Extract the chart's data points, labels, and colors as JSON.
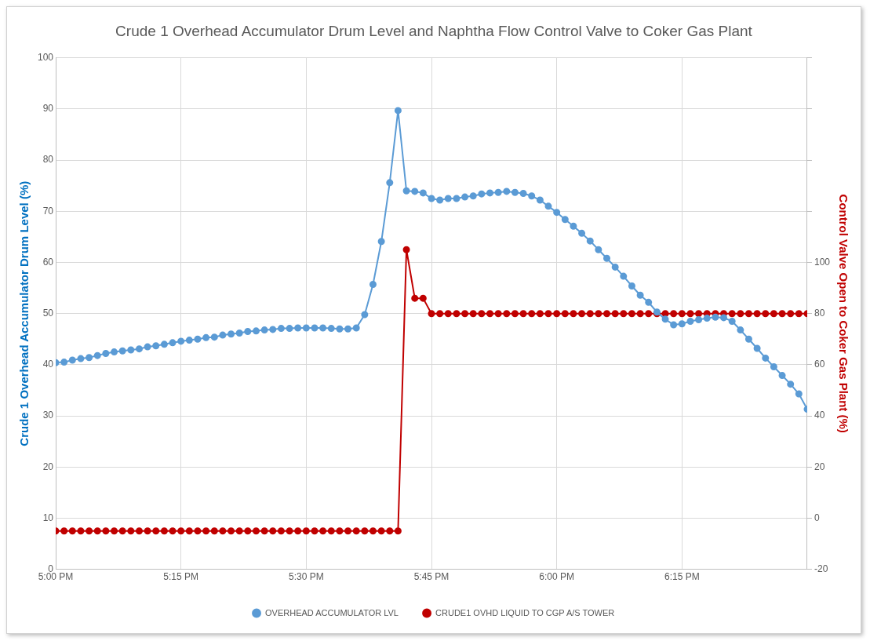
{
  "chart_data": {
    "type": "line",
    "title": "Crude 1 Overhead Accumulator Drum Level and Naphtha Flow Control Valve to Coker Gas Plant",
    "ylabel": "Crude 1 Overhead Accumulator Drum Level (%)",
    "y2label": "Control Valve Open to Coker Gas Plant (%)",
    "x": [
      17.0,
      17.0167,
      17.0333,
      17.05,
      17.0667,
      17.0833,
      17.1,
      17.1167,
      17.1333,
      17.15,
      17.1667,
      17.1833,
      17.2,
      17.2167,
      17.2333,
      17.25,
      17.2667,
      17.2833,
      17.3,
      17.3167,
      17.3333,
      17.35,
      17.3667,
      17.3833,
      17.4,
      17.4167,
      17.4333,
      17.45,
      17.4667,
      17.4833,
      17.5,
      17.5167,
      17.5333,
      17.55,
      17.5667,
      17.5833,
      17.6,
      17.6167,
      17.6333,
      17.65,
      17.6667,
      17.6833,
      17.7,
      17.7167,
      17.7333,
      17.75,
      17.7667,
      17.7833,
      17.8,
      17.8167,
      17.8333,
      17.85,
      17.8667,
      17.8833,
      17.9,
      17.9167,
      17.9333,
      17.95,
      17.9667,
      17.9833,
      18.0,
      18.0167,
      18.0333,
      18.05,
      18.0667,
      18.0833,
      18.1,
      18.1167,
      18.1333,
      18.15,
      18.1667,
      18.1833,
      18.2,
      18.2167,
      18.2333,
      18.25,
      18.2667,
      18.2833,
      18.3,
      18.3167,
      18.3333,
      18.35,
      18.3667,
      18.3833,
      18.4,
      18.4167,
      18.4333,
      18.45,
      18.4667,
      18.4833,
      18.5
    ],
    "series": [
      {
        "name": "OVERHEAD ACCUMULATOR LVL",
        "color": "#5b9bd5",
        "values": [
          40.4,
          40.5,
          40.9,
          41.2,
          41.4,
          41.8,
          42.2,
          42.5,
          42.7,
          42.9,
          43.1,
          43.5,
          43.7,
          44.0,
          44.3,
          44.6,
          44.8,
          45.0,
          45.3,
          45.4,
          45.8,
          46.0,
          46.2,
          46.5,
          46.6,
          46.8,
          46.9,
          47.1,
          47.1,
          47.2,
          47.2,
          47.2,
          47.2,
          47.1,
          47.0,
          47.0,
          47.2,
          49.8,
          55.7,
          64.1,
          75.6,
          89.7,
          74.0,
          73.9,
          73.6,
          72.5,
          72.2,
          72.5,
          72.5,
          72.8,
          73.0,
          73.4,
          73.6,
          73.7,
          73.9,
          73.7,
          73.5,
          73.0,
          72.2,
          71.0,
          69.8,
          68.4,
          67.1,
          65.7,
          64.2,
          62.5,
          60.8,
          59.1,
          57.3,
          55.4,
          53.6,
          52.2,
          50.3,
          48.9,
          47.8,
          48.0,
          48.5,
          48.8,
          49.1,
          49.3,
          49.2,
          48.5,
          46.8,
          45.0,
          43.2,
          41.3,
          39.6,
          37.9,
          36.2,
          34.3,
          31.3
        ]
      },
      {
        "name": "CRUDE1 OVHD LIQUID TO CGP A/S TOWER",
        "color": "#c00000",
        "axis": "y2",
        "values": [
          -5,
          -5,
          -5,
          -5,
          -5,
          -5,
          -5,
          -5,
          -5,
          -5,
          -5,
          -5,
          -5,
          -5,
          -5,
          -5,
          -5,
          -5,
          -5,
          -5,
          -5,
          -5,
          -5,
          -5,
          -5,
          -5,
          -5,
          -5,
          -5,
          -5,
          -5,
          -5,
          -5,
          -5,
          -5,
          -5,
          -5,
          -5,
          -5,
          -5,
          -5,
          -5,
          105,
          86,
          86,
          80,
          80,
          80,
          80,
          80,
          80,
          80,
          80,
          80,
          80,
          80,
          80,
          80,
          80,
          80,
          80,
          80,
          80,
          80,
          80,
          80,
          80,
          80,
          80,
          80,
          80,
          80,
          80,
          80,
          80,
          80,
          80,
          80,
          80,
          80,
          80,
          80,
          80,
          80,
          80,
          80,
          80,
          80,
          80,
          80,
          80
        ]
      }
    ],
    "xlim": [
      17,
      18.5
    ],
    "xticks": [
      {
        "value": 17,
        "label": "5:00 PM"
      },
      {
        "value": 17.25,
        "label": "5:15 PM"
      },
      {
        "value": 17.5,
        "label": "5:30 PM"
      },
      {
        "value": 17.75,
        "label": "5:45 PM"
      },
      {
        "value": 18,
        "label": "6:00 PM"
      },
      {
        "value": 18.25,
        "label": "6:15 PM"
      }
    ],
    "ylim": [
      0,
      100
    ],
    "yticks": [
      0,
      10,
      20,
      30,
      40,
      50,
      60,
      70,
      80,
      90,
      100
    ],
    "y2lim": [
      -20,
      180
    ],
    "y2ticks": [
      -20,
      0,
      20,
      40,
      60,
      80,
      100,
      {
        "value": 120,
        "label": null
      },
      {
        "value": 140,
        "label": null
      },
      {
        "value": 160,
        "label": null
      },
      {
        "value": 180,
        "label": null
      }
    ],
    "grid": true,
    "legend": "bottom",
    "marker": "circle",
    "line_style": "solid"
  }
}
